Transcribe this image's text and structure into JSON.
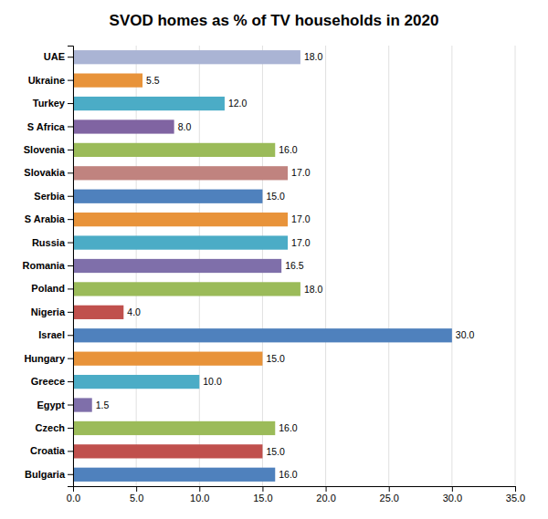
{
  "chart_data": {
    "type": "bar",
    "orientation": "horizontal",
    "title": "SVOD homes as % of TV households in 2020",
    "categories": [
      "UAE",
      "Ukraine",
      "Turkey",
      "S Africa",
      "Slovenia",
      "Slovakia",
      "Serbia",
      "S Arabia",
      "Russia",
      "Romania",
      "Poland",
      "Nigeria",
      "Israel",
      "Hungary",
      "Greece",
      "Egypt",
      "Czech",
      "Croatia",
      "Bulgaria"
    ],
    "values": [
      18.0,
      5.5,
      12.0,
      8.0,
      16.0,
      17.0,
      15.0,
      17.0,
      17.0,
      16.5,
      18.0,
      4.0,
      30.0,
      15.0,
      10.0,
      1.5,
      16.0,
      15.0,
      16.0
    ],
    "value_labels": [
      "18.0",
      "5.5",
      "12.0",
      "8.0",
      "16.0",
      "17.0",
      "15.0",
      "17.0",
      "17.0",
      "16.5",
      "18.0",
      "4.0",
      "30.0",
      "15.0",
      "10.0",
      "1.5",
      "16.0",
      "15.0",
      "16.0"
    ],
    "colors": [
      "#aab4d4",
      "#e8933a",
      "#4bacc6",
      "#8064a2",
      "#9bbb59",
      "#c0837f",
      "#4f81bd",
      "#e8933a",
      "#4bacc6",
      "#7f6faa",
      "#9bbb59",
      "#c0504d",
      "#4f81bd",
      "#e8933a",
      "#4bacc6",
      "#7f6faa",
      "#9bbb59",
      "#c0504d",
      "#4f81bd"
    ],
    "xlim": [
      0,
      35.0
    ],
    "xticks": [
      {
        "value": 0.0,
        "label": "0.0"
      },
      {
        "value": 5.0,
        "label": "5.0"
      },
      {
        "value": 10.0,
        "label": "10.0"
      },
      {
        "value": 15.0,
        "label": "15.0"
      },
      {
        "value": 20.0,
        "label": "20.0"
      },
      {
        "value": 25.0,
        "label": "25.0"
      },
      {
        "value": 30.0,
        "label": "30.0"
      },
      {
        "value": 35.0,
        "label": "35.0"
      }
    ],
    "grid": true,
    "data_labels": true
  }
}
